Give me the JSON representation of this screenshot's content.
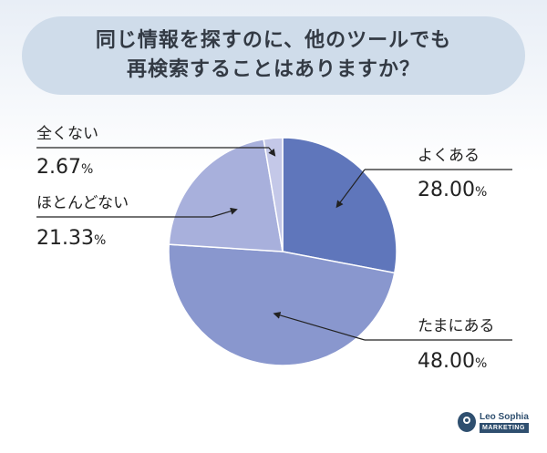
{
  "title": {
    "line1": "同じ情報を探すのに、他のツールでも",
    "line2": "再検索することはありますか？"
  },
  "chart_data": {
    "type": "pie",
    "slices": [
      {
        "label": "よくある",
        "value": 28.0,
        "value_text": "28.00",
        "unit": "%",
        "color": "#5f76bb",
        "label_side": "right"
      },
      {
        "label": "たまにある",
        "value": 48.0,
        "value_text": "48.00",
        "unit": "%",
        "color": "#8997ce",
        "label_side": "right"
      },
      {
        "label": "ほとんどない",
        "value": 21.33,
        "value_text": "21.33",
        "unit": "%",
        "color": "#a8b0dc",
        "label_side": "left"
      },
      {
        "label": "全くない",
        "value": 2.67,
        "value_text": "2.67",
        "unit": "%",
        "color": "#c4c8e8",
        "label_side": "left"
      }
    ]
  },
  "logo": {
    "name": "Leo Sophia",
    "sub": "MARKETING"
  }
}
